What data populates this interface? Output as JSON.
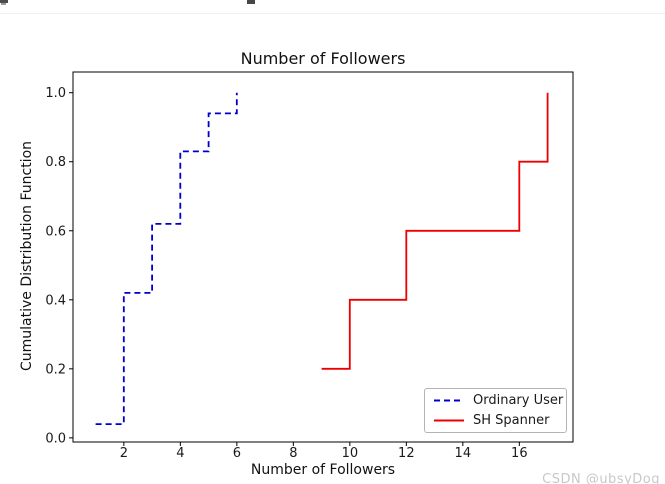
{
  "watermark": {
    "text": "CSDN @ubsyDog",
    "color": "#c8c8c8"
  },
  "chart_data": {
    "type": "line",
    "subtype": "step-cdf",
    "title": "Number of Followers",
    "xlabel": "Number of Followers",
    "ylabel": "Cumulative Distribution Function",
    "xlim": [
      0.2,
      17.9
    ],
    "ylim": [
      -0.012,
      1.06
    ],
    "x_ticks": [
      2,
      4,
      6,
      8,
      10,
      12,
      14,
      16
    ],
    "y_ticks": [
      "0.0",
      "0.2",
      "0.4",
      "0.6",
      "0.8",
      "1.0"
    ],
    "y_tick_values": [
      0.0,
      0.2,
      0.4,
      0.6,
      0.8,
      1.0
    ],
    "grid": false,
    "legend_position": "lower right",
    "frame_color": "#000000",
    "series": [
      {
        "name": "Ordinary User",
        "color": "#0000cc",
        "style": "dashed",
        "drawstyle": "steps-post",
        "x": [
          1,
          2,
          3,
          4,
          5,
          6
        ],
        "cdf": [
          0.04,
          0.42,
          0.62,
          0.83,
          0.94,
          1.0
        ]
      },
      {
        "name": "SH Spanner",
        "color": "#ee0000",
        "style": "solid",
        "drawstyle": "steps-post",
        "x": [
          9,
          10,
          12,
          16,
          17
        ],
        "cdf": [
          0.2,
          0.4,
          0.6,
          0.8,
          1.0
        ]
      }
    ]
  }
}
